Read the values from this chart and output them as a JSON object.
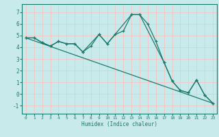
{
  "title": "",
  "xlabel": "Humidex (Indice chaleur)",
  "ylabel": "",
  "bg_color": "#c8eaea",
  "grid_color": "#f0c8c8",
  "line_color": "#1a7a6e",
  "tick_color": "#1a7a6e",
  "xlim": [
    -0.5,
    23.5
  ],
  "ylim": [
    -1.7,
    7.7
  ],
  "xticks": [
    0,
    1,
    2,
    3,
    4,
    5,
    6,
    7,
    8,
    9,
    10,
    11,
    12,
    13,
    14,
    15,
    16,
    17,
    18,
    19,
    20,
    21,
    22,
    23
  ],
  "yticks": [
    -1,
    0,
    1,
    2,
    3,
    4,
    5,
    6,
    7
  ],
  "line1_x": [
    0,
    1,
    2,
    3,
    4,
    5,
    6,
    7,
    8,
    9,
    10,
    11,
    12,
    13,
    14,
    15,
    16,
    17,
    18,
    19,
    20,
    21,
    22,
    23
  ],
  "line1_y": [
    4.8,
    4.8,
    4.4,
    4.1,
    4.5,
    4.3,
    4.3,
    3.6,
    4.1,
    5.1,
    4.3,
    5.1,
    5.4,
    6.8,
    6.8,
    6.0,
    4.5,
    2.7,
    1.1,
    0.3,
    0.1,
    1.2,
    -0.1,
    -0.8
  ],
  "line2_x": [
    0,
    23
  ],
  "line2_y": [
    4.8,
    -0.8
  ],
  "line3_x": [
    0,
    1,
    2,
    3,
    4,
    5,
    6,
    7,
    9,
    10,
    13,
    14,
    17,
    18,
    19,
    20,
    21,
    22,
    23
  ],
  "line3_y": [
    4.8,
    4.8,
    4.4,
    4.1,
    4.5,
    4.3,
    4.3,
    3.6,
    5.1,
    4.3,
    6.8,
    6.8,
    2.7,
    1.1,
    0.3,
    0.1,
    1.2,
    -0.1,
    -0.8
  ]
}
